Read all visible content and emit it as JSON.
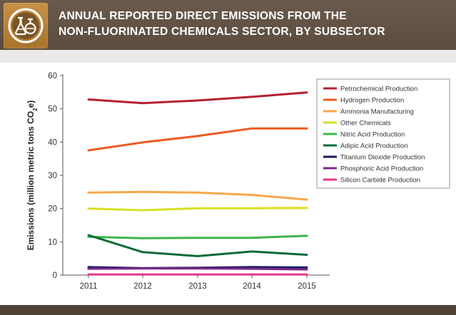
{
  "header": {
    "title_line1": "ANNUAL REPORTED DIRECT EMISSIONS FROM THE",
    "title_line2": "NON-FLUORINATED CHEMICALS SECTOR, BY SUBSECTOR",
    "logo_icon": "chemistry-flasks-icon",
    "colors": {
      "banner": "#5e4f42",
      "logo_tile": "#b8823a"
    }
  },
  "chart_data": {
    "type": "line",
    "x": [
      2011,
      2012,
      2013,
      2014,
      2015
    ],
    "ylabel": "Emissions (million metric tons CO2e)",
    "ylabel_parts": {
      "pre": "Emissions (million metric tons CO",
      "sub": "2",
      "post": "e)"
    },
    "ylim": [
      0,
      60
    ],
    "yticks": [
      0,
      10,
      20,
      30,
      40,
      50,
      60
    ],
    "grid": false,
    "legend_position": "top-right",
    "series": [
      {
        "name": "Petrochemical Production",
        "color": "#b5202e",
        "values": [
          52.8,
          51.7,
          52.5,
          53.6,
          54.9
        ]
      },
      {
        "name": "Hydrogen Production",
        "color": "#ee5a24",
        "values": [
          37.5,
          39.9,
          41.8,
          44.1,
          44.1
        ]
      },
      {
        "name": "Ammonia Manufacturing",
        "color": "#f7a84a",
        "values": [
          24.8,
          25.0,
          24.8,
          24.1,
          22.7
        ]
      },
      {
        "name": "Other Chemicals",
        "color": "#d7df23",
        "values": [
          20.0,
          19.5,
          20.1,
          20.1,
          20.2
        ]
      },
      {
        "name": "Nitric Acid Production",
        "color": "#3db54a",
        "values": [
          11.5,
          11.1,
          11.2,
          11.2,
          11.8
        ]
      },
      {
        "name": "Adipic Acid Production",
        "color": "#0f6b37",
        "values": [
          12.0,
          6.9,
          5.7,
          7.1,
          6.1
        ]
      },
      {
        "name": "Titanium Dioxide Production",
        "color": "#1c1a5e",
        "values": [
          2.4,
          2.1,
          2.2,
          2.4,
          2.3
        ]
      },
      {
        "name": "Phosphoric Acid Production",
        "color": "#7b2a8b",
        "values": [
          1.9,
          2.0,
          2.0,
          1.9,
          1.7
        ]
      },
      {
        "name": "Silicon Carbide Production",
        "color": "#e8338a",
        "values": [
          0.2,
          0.2,
          0.2,
          0.2,
          0.2
        ]
      }
    ]
  }
}
